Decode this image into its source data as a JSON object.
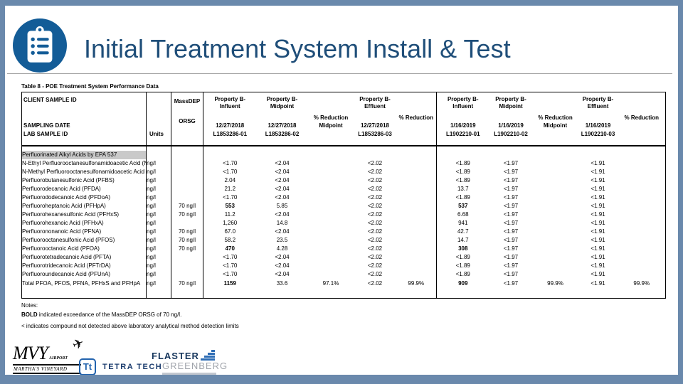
{
  "slide": {
    "title": "Initial Treatment System Install & Test",
    "icon": "clipboard-list-icon"
  },
  "colors": {
    "frame": "#6a89ac",
    "title_text": "#1f4e79",
    "icon_circle": "#135c97",
    "section_band": "#c9c9c9",
    "tetra_blue": "#2263ae",
    "flaster_navy": "#16365c",
    "flaster_gray": "#a0a4ab"
  },
  "table": {
    "title": "Table 8 - POE Treatment System Performance Data",
    "corner": {
      "client_sample_id": "CLIENT SAMPLE ID",
      "sampling_date": "SAMPLING DATE",
      "lab_sample_id": "LAB SAMPLE ID"
    },
    "units_header": "Units",
    "orsg": {
      "line1": "MassDEP",
      "line2": "ORSG"
    },
    "groups": [
      {
        "title1": "Property B-",
        "title2": "Influent",
        "date": "12/27/2018",
        "lab": "L1853286-01"
      },
      {
        "title1": "Property B-",
        "title2": "Midpoint",
        "date": "12/27/2018",
        "lab": "L1853286-02"
      },
      {
        "label1": "% Reduction",
        "label2": "Midpoint"
      },
      {
        "title1": "Property B-",
        "title2": "Effluent",
        "date": "12/27/2018",
        "lab": "L1853286-03"
      },
      {
        "label1": "% Reduction"
      },
      {
        "title1": "Property B-",
        "title2": "Influent",
        "date": "1/16/2019",
        "lab": "L1902210-01"
      },
      {
        "title1": "Property B-",
        "title2": "Midpoint",
        "date": "1/16/2019",
        "lab": "L1902210-02"
      },
      {
        "label1": "% Reduction",
        "label2": "Midpoint"
      },
      {
        "title1": "Property B-",
        "title2": "Effluent",
        "date": "1/16/2019",
        "lab": "L1902210-03"
      },
      {
        "label1": "% Reduction"
      }
    ],
    "section": "Perfluorinated Alkyl Acids by EPA 537",
    "rows": [
      {
        "label": "N-Ethyl Perfluorooctanesulfonamidoacetic Acid (N",
        "units": "ng/l",
        "orsg": "",
        "values": [
          "<1.70",
          "<2.04",
          "",
          "<2.02",
          "",
          "<1.89",
          "<1.97",
          "",
          "<1.91",
          ""
        ],
        "bold": []
      },
      {
        "label": "N-Methyl Perfluorooctanesulfonamidoacetic Acid",
        "units": "ng/l",
        "orsg": "",
        "values": [
          "<1.70",
          "<2.04",
          "",
          "<2.02",
          "",
          "<1.89",
          "<1.97",
          "",
          "<1.91",
          ""
        ],
        "bold": []
      },
      {
        "label": "Perfluorobutanesulfonic Acid (PFBS)",
        "units": "ng/l",
        "orsg": "",
        "values": [
          "2.04",
          "<2.04",
          "",
          "<2.02",
          "",
          "<1.89",
          "<1.97",
          "",
          "<1.91",
          ""
        ],
        "bold": []
      },
      {
        "label": "Perfluorodecanoic Acid (PFDA)",
        "units": "ng/l",
        "orsg": "",
        "values": [
          "21.2",
          "<2.04",
          "",
          "<2.02",
          "",
          "13.7",
          "<1.97",
          "",
          "<1.91",
          ""
        ],
        "bold": []
      },
      {
        "label": "Perfluorododecanoic Acid (PFDoA)",
        "units": "ng/l",
        "orsg": "",
        "values": [
          "<1.70",
          "<2.04",
          "",
          "<2.02",
          "",
          "<1.89",
          "<1.97",
          "",
          "<1.91",
          ""
        ],
        "bold": []
      },
      {
        "label": "Perfluoroheptanoic Acid (PFHpA)",
        "units": "ng/l",
        "orsg": "70 ng/l",
        "values": [
          "553",
          "5.85",
          "",
          "<2.02",
          "",
          "537",
          "<1.97",
          "",
          "<1.91",
          ""
        ],
        "bold": [
          0,
          5
        ]
      },
      {
        "label": "Perfluorohexanesulfonic Acid (PFHxS)",
        "units": "ng/l",
        "orsg": "70 ng/l",
        "values": [
          "11.2",
          "<2.04",
          "",
          "<2.02",
          "",
          "6.68",
          "<1.97",
          "",
          "<1.91",
          ""
        ],
        "bold": []
      },
      {
        "label": "Perfluorohexanoic Acid (PFHxA)",
        "units": "ng/l",
        "orsg": "",
        "values": [
          "1,260",
          "14.8",
          "",
          "<2.02",
          "",
          "941",
          "<1.97",
          "",
          "<1.91",
          ""
        ],
        "bold": []
      },
      {
        "label": "Perfluorononanoic Acid (PFNA)",
        "units": "ng/l",
        "orsg": "70 ng/l",
        "values": [
          "67.0",
          "<2.04",
          "",
          "<2.02",
          "",
          "42.7",
          "<1.97",
          "",
          "<1.91",
          ""
        ],
        "bold": []
      },
      {
        "label": "Perfluorooctanesulfonic Acid (PFOS)",
        "units": "ng/l",
        "orsg": "70 ng/l",
        "values": [
          "58.2",
          "23.5",
          "",
          "<2.02",
          "",
          "14.7",
          "<1.97",
          "",
          "<1.91",
          ""
        ],
        "bold": []
      },
      {
        "label": "Perfluorooctanoic Acid (PFOA)",
        "units": "ng/l",
        "orsg": "70 ng/l",
        "values": [
          "470",
          "4.28",
          "",
          "<2.02",
          "",
          "308",
          "<1.97",
          "",
          "<1.91",
          ""
        ],
        "bold": [
          0,
          5
        ]
      },
      {
        "label": "Perfluorotetradecanoic Acid (PFTA)",
        "units": "ng/l",
        "orsg": "",
        "values": [
          "<1.70",
          "<2.04",
          "",
          "<2.02",
          "",
          "<1.89",
          "<1.97",
          "",
          "<1.91",
          ""
        ],
        "bold": []
      },
      {
        "label": "Perfluorotridecanoic Acid (PFTrDA)",
        "units": "ng/l",
        "orsg": "",
        "values": [
          "<1.70",
          "<2.04",
          "",
          "<2.02",
          "",
          "<1.89",
          "<1.97",
          "",
          "<1.91",
          ""
        ],
        "bold": []
      },
      {
        "label": "Perfluoroundecanoic Acid (PFUnA)",
        "units": "ng/l",
        "orsg": "",
        "values": [
          "<1.70",
          "<2.04",
          "",
          "<2.02",
          "",
          "<1.89",
          "<1.97",
          "",
          "<1.91",
          ""
        ],
        "bold": []
      },
      {
        "label": "Total PFOA, PFOS, PFNA, PFHxS and PFHpA",
        "units": "ng/l",
        "orsg": "70 ng/l",
        "total": true,
        "values": [
          "1159",
          "33.6",
          "97.1%",
          "<2.02",
          "99.9%",
          "909",
          "<1.97",
          "99.9%",
          "<1.91",
          "99.9%"
        ],
        "bold": [
          0,
          5
        ]
      }
    ]
  },
  "notes": {
    "label": "Notes:",
    "bold_note": {
      "prefix": "BOLD",
      "text": " indicated exceedance of the MassDEP ORSG of 70 ng/l."
    },
    "detection_note": "< indicates compound not detected above laboratory analytical method detection limits"
  },
  "logos": {
    "mvy": {
      "name": "MVY",
      "suffix": "AIRPORT",
      "subtitle": "MARTHA'S VINEYARD"
    },
    "tetra_tech": {
      "mark": "Tt",
      "name": "TETRA TECH"
    },
    "flaster": {
      "line1": "FLASTER",
      "line2": "GREENBERG"
    }
  }
}
